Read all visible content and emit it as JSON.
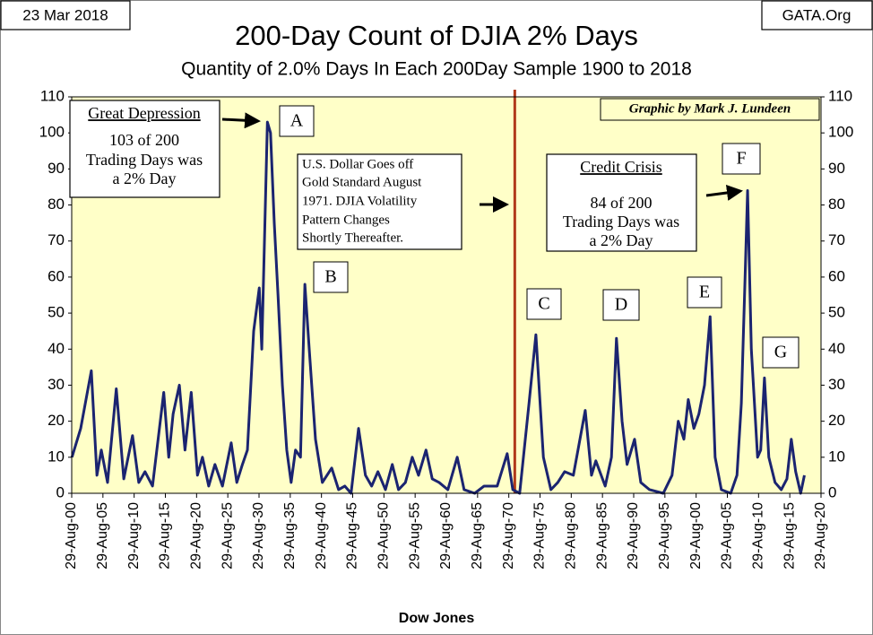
{
  "chart_data": {
    "type": "line",
    "title": "200-Day Count of  DJIA 2% Days",
    "subtitle": "Quantity of 2.0% Days In Each 200Day Sample 1900 to 2018",
    "xlabel": "Dow Jones",
    "corner_left": "23 Mar 2018",
    "corner_right": "GATA.Org",
    "credit": "Graphic by Mark J. Lundeen",
    "boxes": [
      {
        "heading": "Great Depression",
        "lines": [
          "103 of 200",
          "Trading Days was",
          "a 2% Day"
        ]
      },
      {
        "lines": [
          "U.S. Dollar Goes off",
          "Gold Standard August",
          "1971.  DJIA Volatility",
          "Pattern Changes",
          "Shortly Thereafter."
        ]
      },
      {
        "heading": "Credit Crisis",
        "lines": [
          "84 of 200",
          "Trading Days was",
          "a 2% Day"
        ]
      }
    ],
    "labels": [
      "A",
      "B",
      "C",
      "D",
      "E",
      "F",
      "G"
    ],
    "marker_x": 1971.62,
    "marker_color": "#b03a1a",
    "x": [
      1900.7,
      1902.1,
      1903.8,
      1904.7,
      1905.4,
      1906.4,
      1907.8,
      1909.0,
      1910.4,
      1911.4,
      1912.4,
      1913.6,
      1915.4,
      1916.2,
      1916.9,
      1917.9,
      1918.8,
      1919.8,
      1920.8,
      1921.6,
      1922.6,
      1923.6,
      1924.8,
      1926.2,
      1927.1,
      1928.0,
      1928.8,
      1929.8,
      1930.7,
      1931.1,
      1932.0,
      1932.5,
      1933.1,
      1933.7,
      1934.4,
      1935.1,
      1935.8,
      1936.5,
      1937.3,
      1938.0,
      1938.7,
      1939.7,
      1940.8,
      1942.3,
      1943.4,
      1944.4,
      1945.4,
      1946.6,
      1947.7,
      1948.7,
      1949.7,
      1950.9,
      1952.0,
      1953.0,
      1954.1,
      1955.2,
      1956.2,
      1957.4,
      1958.4,
      1959.5,
      1960.9,
      1962.4,
      1963.5,
      1965.2,
      1966.7,
      1968.8,
      1970.4,
      1971.3,
      1972.4,
      1973.9,
      1975.0,
      1976.2,
      1977.4,
      1978.5,
      1979.6,
      1981.0,
      1982.9,
      1983.9,
      1984.6,
      1986.1,
      1987.1,
      1987.9,
      1988.8,
      1989.6,
      1990.8,
      1991.8,
      1993.2,
      1995.4,
      1996.8,
      1997.8,
      1998.7,
      1999.4,
      2000.3,
      2001.1,
      2002.0,
      2002.9,
      2003.7,
      2004.7,
      2006.2,
      2007.2,
      2007.9,
      2008.5,
      2008.9,
      2009.5,
      2010.5,
      2011.0,
      2011.6,
      2012.3,
      2013.3,
      2014.3,
      2015.2,
      2015.9,
      2016.6,
      2017.4,
      2018.0
    ],
    "series": [
      {
        "color": "#1b2470",
        "values": [
          10,
          18,
          34,
          5,
          12,
          3,
          29,
          4,
          16,
          3,
          6,
          2,
          28,
          10,
          22,
          30,
          12,
          28,
          5,
          10,
          2,
          8,
          2,
          14,
          3,
          8,
          12,
          45,
          57,
          40,
          103,
          100,
          75,
          55,
          30,
          12,
          3,
          12,
          10,
          58,
          40,
          15,
          3,
          7,
          1,
          2,
          0,
          18,
          5,
          2,
          6,
          1,
          8,
          1,
          3,
          10,
          5,
          12,
          4,
          3,
          1,
          10,
          1,
          0,
          2,
          2,
          11,
          1,
          0,
          25,
          44,
          10,
          1,
          3,
          6,
          5,
          23,
          5,
          9,
          2,
          10,
          43,
          20,
          8,
          15,
          3,
          1,
          0,
          5,
          20,
          15,
          26,
          18,
          22,
          30,
          49,
          10,
          1,
          0,
          5,
          25,
          60,
          84,
          40,
          10,
          12,
          32,
          10,
          3,
          1,
          4,
          15,
          6,
          0,
          5
        ]
      }
    ],
    "xlim": [
      1900.66,
      2020.66
    ],
    "xticks": [
      {
        "value": 1900.66,
        "label": "29-Aug-00"
      },
      {
        "value": 1905.66,
        "label": "29-Aug-05"
      },
      {
        "value": 1910.66,
        "label": "29-Aug-10"
      },
      {
        "value": 1915.66,
        "label": "29-Aug-15"
      },
      {
        "value": 1920.66,
        "label": "29-Aug-20"
      },
      {
        "value": 1925.66,
        "label": "29-Aug-25"
      },
      {
        "value": 1930.66,
        "label": "29-Aug-30"
      },
      {
        "value": 1935.66,
        "label": "29-Aug-35"
      },
      {
        "value": 1940.66,
        "label": "29-Aug-40"
      },
      {
        "value": 1945.66,
        "label": "29-Aug-45"
      },
      {
        "value": 1950.66,
        "label": "29-Aug-50"
      },
      {
        "value": 1955.66,
        "label": "29-Aug-55"
      },
      {
        "value": 1960.66,
        "label": "29-Aug-60"
      },
      {
        "value": 1965.66,
        "label": "29-Aug-65"
      },
      {
        "value": 1970.66,
        "label": "29-Aug-70"
      },
      {
        "value": 1975.66,
        "label": "29-Aug-75"
      },
      {
        "value": 1980.66,
        "label": "29-Aug-80"
      },
      {
        "value": 1985.66,
        "label": "29-Aug-85"
      },
      {
        "value": 1990.66,
        "label": "29-Aug-90"
      },
      {
        "value": 1995.66,
        "label": "29-Aug-95"
      },
      {
        "value": 2000.66,
        "label": "29-Aug-00"
      },
      {
        "value": 2005.66,
        "label": "29-Aug-05"
      },
      {
        "value": 2010.66,
        "label": "29-Aug-10"
      },
      {
        "value": 2015.66,
        "label": "29-Aug-15"
      },
      {
        "value": 2020.66,
        "label": "29-Aug-20"
      }
    ],
    "ylim": [
      0,
      110
    ],
    "yticks": [
      0,
      10,
      20,
      30,
      40,
      50,
      60,
      70,
      80,
      90,
      100,
      110
    ],
    "plot_background": "#ffffc8"
  }
}
